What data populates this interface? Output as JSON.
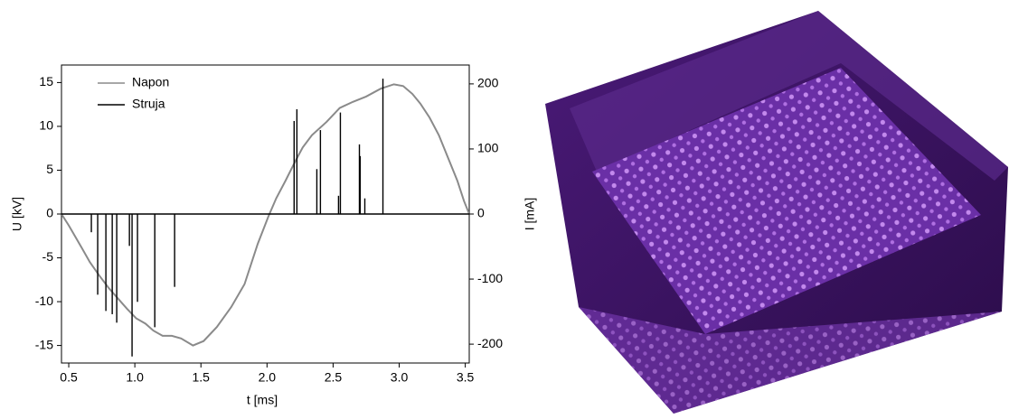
{
  "chart_data": {
    "type": "line",
    "x_label": "t [ms]",
    "y_label": "U [kV]",
    "y2_label": "I [mA]",
    "xlim": [
      0.445,
      3.53
    ],
    "xticks": [
      0.5,
      {
        "value": 1,
        "label": "1.0"
      },
      1.5,
      {
        "value": 2,
        "label": "2.0"
      },
      2.5,
      {
        "value": 3,
        "label": "3.0"
      },
      3.5
    ],
    "ylim": [
      -17,
      17
    ],
    "yticks": [
      -15,
      -10,
      -5,
      0,
      5,
      10,
      15
    ],
    "y2lim": [
      -229,
      229
    ],
    "y2ticks": [
      -200,
      -100,
      0,
      100,
      200
    ],
    "legend": "upper-left",
    "series": [
      {
        "name": "Napon",
        "color": "#8a8a8a",
        "style": "line",
        "x": [
          0.445,
          0.5,
          0.6,
          0.66,
          0.73,
          0.8,
          0.87,
          0.94,
          1.01,
          1.08,
          1.14,
          1.21,
          1.28,
          1.35,
          1.44,
          1.52,
          1.62,
          1.73,
          1.83,
          1.93,
          2.01,
          2.07,
          2.14,
          2.21,
          2.27,
          2.34,
          2.45,
          2.55,
          2.65,
          2.75,
          2.86,
          2.96,
          3.03,
          3.1,
          3.16,
          3.23,
          3.3,
          3.37,
          3.44,
          3.49,
          3.53
        ],
        "values": [
          0,
          -1.3,
          -3.9,
          -5.5,
          -7,
          -8.4,
          -9.6,
          -10.8,
          -11.9,
          -12.5,
          -13.3,
          -13.9,
          -13.9,
          -14.2,
          -15,
          -14.5,
          -12.9,
          -10.6,
          -8,
          -3.4,
          -0.3,
          1.8,
          3.8,
          5.9,
          7.6,
          9,
          10.5,
          12.1,
          12.8,
          13.4,
          14.3,
          14.8,
          14.6,
          13.7,
          12.6,
          11,
          9,
          6.4,
          3.8,
          1.5,
          0
        ]
      },
      {
        "name": "Struja",
        "color": "#000000",
        "style": "stem",
        "axis": "y2",
        "x": [
          0.671,
          0.719,
          0.781,
          0.829,
          0.863,
          0.959,
          0.979,
          1.02,
          1.151,
          1.301,
          2.205,
          2.226,
          2.377,
          2.404,
          2.541,
          2.555,
          2.699,
          2.705,
          2.74,
          2.877
        ],
        "values": [
          -28,
          -124,
          -149,
          -154,
          -167,
          -49,
          -219,
          -135,
          -174,
          -112,
          143,
          161,
          69,
          129,
          28,
          156,
          107,
          89,
          24,
          208
        ]
      }
    ]
  }
}
